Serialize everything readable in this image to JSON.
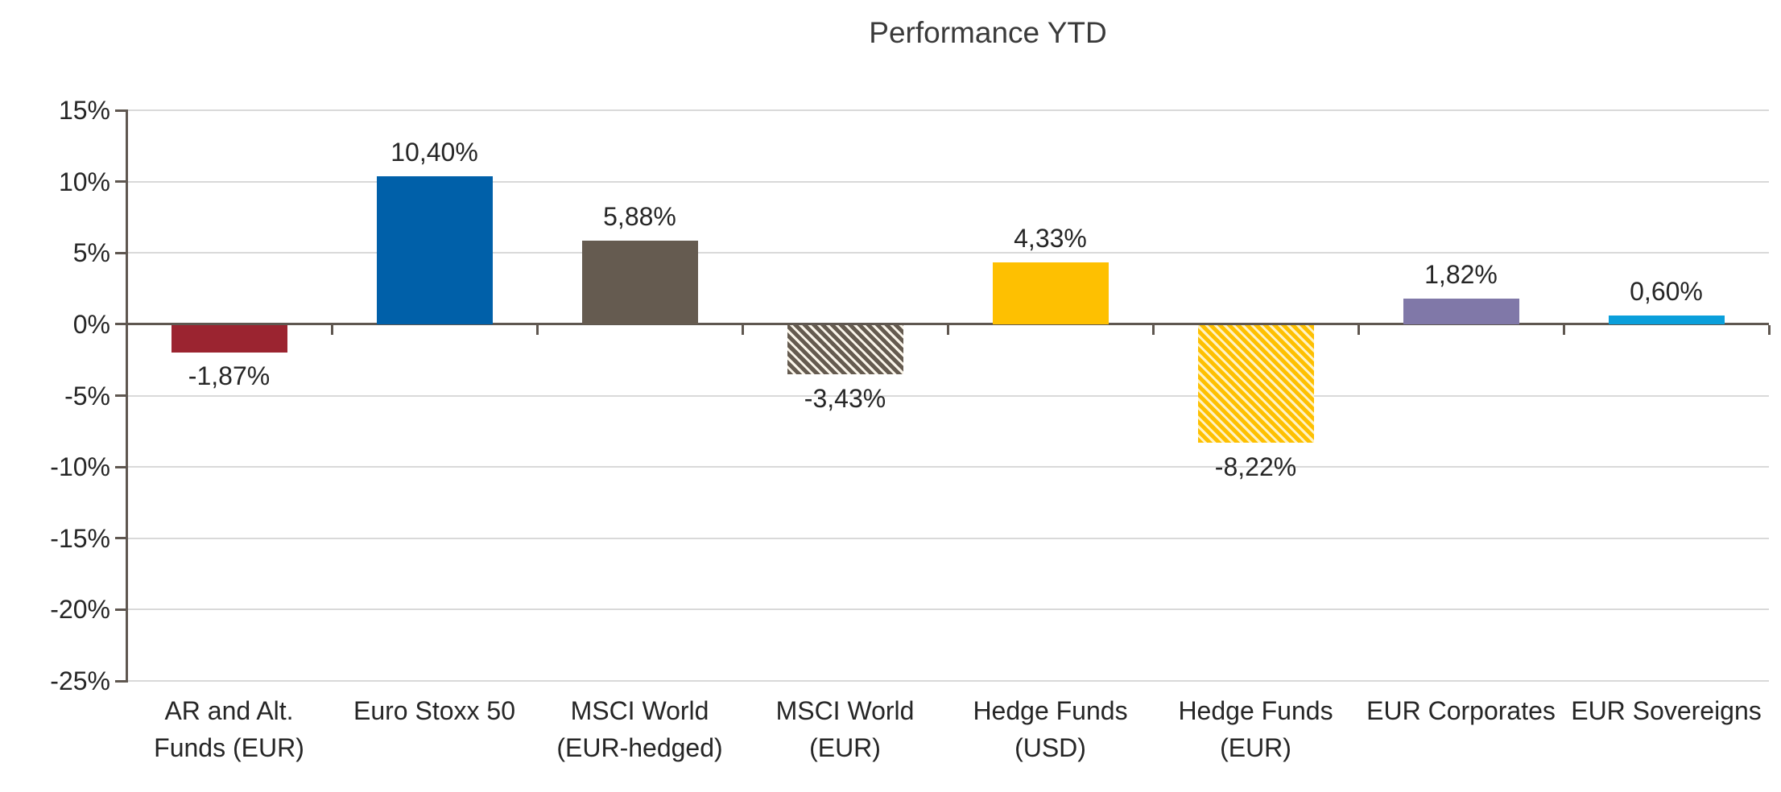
{
  "chart_data": {
    "type": "bar",
    "title": "Performance YTD",
    "categories": [
      "AR and Alt.\nFunds (EUR)",
      "Euro Stoxx 50",
      "MSCI World\n(EUR-hedged)",
      "MSCI World\n(EUR)",
      "Hedge Funds\n(USD)",
      "Hedge Funds\n(EUR)",
      "EUR Corporates",
      "EUR Sovereigns"
    ],
    "values": [
      -1.87,
      10.4,
      5.88,
      -3.43,
      4.33,
      -8.22,
      1.82,
      0.6
    ],
    "value_labels": [
      "-1,87%",
      "10,40%",
      "5,88%",
      "-3,43%",
      "4,33%",
      "-8,22%",
      "1,82%",
      "0,60%"
    ],
    "bar_styles": [
      {
        "color": "#9b2430",
        "pattern": "solid"
      },
      {
        "color": "#0060a9",
        "pattern": "solid"
      },
      {
        "color": "#655b50",
        "pattern": "solid"
      },
      {
        "color": "#655b50",
        "pattern": "diagonal-stripes",
        "stripe_color": "#faf5ea"
      },
      {
        "color": "#fec001",
        "pattern": "solid"
      },
      {
        "color": "#fec001",
        "pattern": "diagonal-stripes",
        "stripe_color": "#fff3c4"
      },
      {
        "color": "#8078a8",
        "pattern": "solid"
      },
      {
        "color": "#0a9fdb",
        "pattern": "solid"
      }
    ],
    "xlabel": "",
    "ylabel": "",
    "ylim": [
      -25,
      15
    ],
    "ytick_step": 5,
    "ytick_labels": [
      "15%",
      "10%",
      "5%",
      "0%",
      "-5%",
      "-10%",
      "-15%",
      "-20%",
      "-25%"
    ],
    "grid": true,
    "legend": false,
    "colors": {
      "axis": "#5f5750",
      "gridline": "#d9d9d9",
      "text": "#262626",
      "title": "#3a3a3a",
      "background": "#ffffff"
    }
  }
}
